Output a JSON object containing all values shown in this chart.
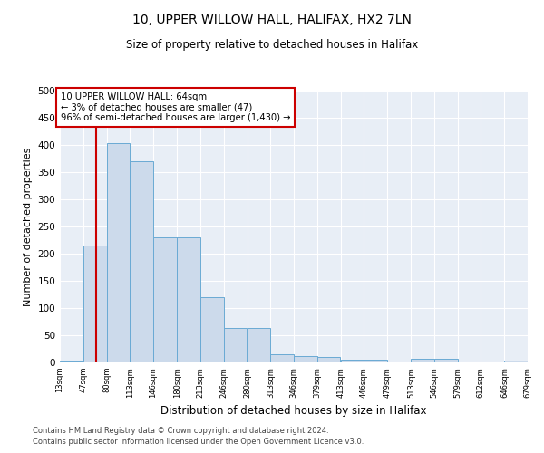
{
  "title1": "10, UPPER WILLOW HALL, HALIFAX, HX2 7LN",
  "title2": "Size of property relative to detached houses in Halifax",
  "xlabel": "Distribution of detached houses by size in Halifax",
  "ylabel": "Number of detached properties",
  "footer1": "Contains HM Land Registry data © Crown copyright and database right 2024.",
  "footer2": "Contains public sector information licensed under the Open Government Licence v3.0.",
  "annotation_line1": "10 UPPER WILLOW HALL: 64sqm",
  "annotation_line2": "← 3% of detached houses are smaller (47)",
  "annotation_line3": "96% of semi-detached houses are larger (1,430) →",
  "bar_left_edges": [
    13,
    47,
    80,
    113,
    146,
    180,
    213,
    246,
    280,
    313,
    346,
    379,
    413,
    446,
    479,
    513,
    546,
    579,
    612,
    646
  ],
  "bar_heights": [
    2,
    215,
    403,
    370,
    230,
    230,
    120,
    63,
    63,
    15,
    12,
    10,
    5,
    5,
    0,
    7,
    7,
    0,
    0,
    3
  ],
  "bin_width": 33,
  "property_size": 64,
  "bar_color": "#ccdaeb",
  "bar_edge_color": "#6aaad4",
  "red_line_color": "#cc0000",
  "annotation_box_color": "#cc0000",
  "bg_color": "#e8eef6",
  "ylim": [
    0,
    500
  ],
  "yticks": [
    0,
    50,
    100,
    150,
    200,
    250,
    300,
    350,
    400,
    450,
    500
  ],
  "tick_labels": [
    "13sqm",
    "47sqm",
    "80sqm",
    "113sqm",
    "146sqm",
    "180sqm",
    "213sqm",
    "246sqm",
    "280sqm",
    "313sqm",
    "346sqm",
    "379sqm",
    "413sqm",
    "446sqm",
    "479sqm",
    "513sqm",
    "546sqm",
    "579sqm",
    "612sqm",
    "646sqm",
    "679sqm"
  ]
}
